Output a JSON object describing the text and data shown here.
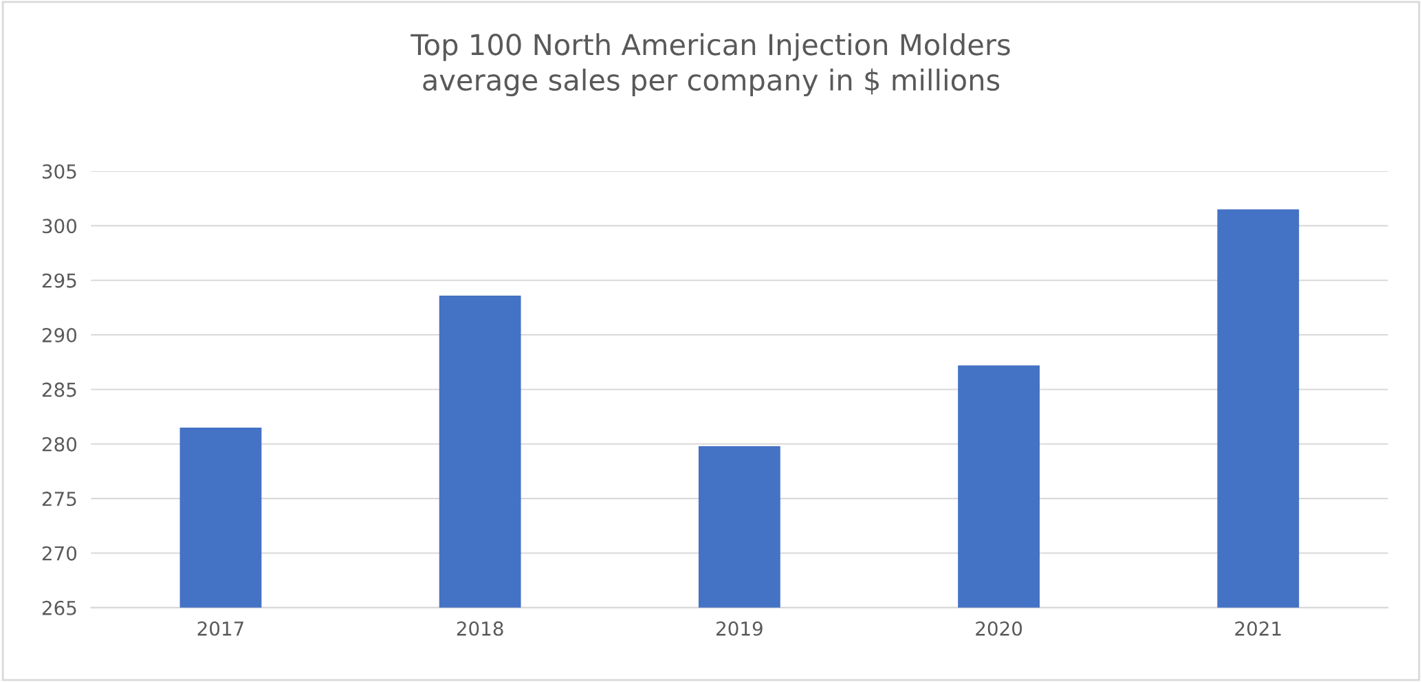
{
  "chart_data": {
    "type": "bar",
    "title": "Top 100 North American Injection Molders\naverage sales per company in $ millions",
    "categories": [
      "2017",
      "2018",
      "2019",
      "2020",
      "2021"
    ],
    "values": [
      281.5,
      293.6,
      279.8,
      287.2,
      301.5
    ],
    "color": "#4472c4",
    "ylim": [
      265,
      305
    ],
    "yticks": [
      265,
      270,
      275,
      280,
      285,
      290,
      295,
      300,
      305
    ],
    "grid": "y",
    "legend": false
  }
}
